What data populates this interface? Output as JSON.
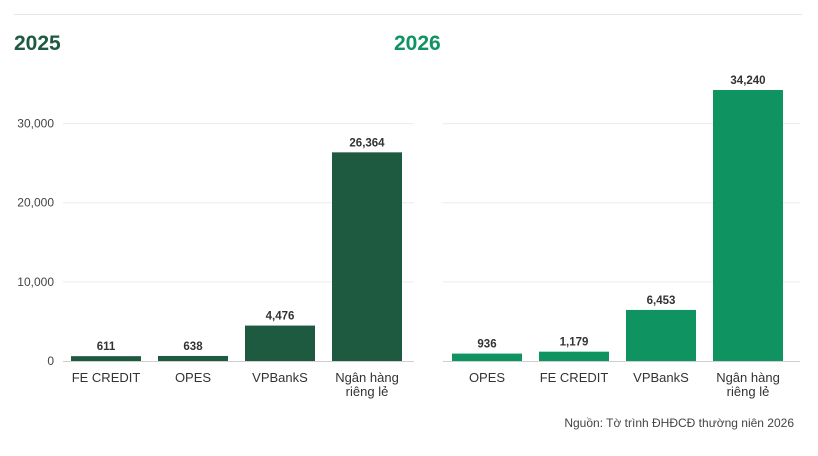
{
  "chart_data": [
    {
      "type": "bar",
      "title": "2025",
      "categories": [
        [
          "FE CREDIT"
        ],
        [
          "OPES"
        ],
        [
          "VPBankS"
        ],
        [
          "Ngân hàng",
          "riêng lẻ"
        ]
      ],
      "values": [
        611,
        638,
        4476,
        26364
      ],
      "value_labels": [
        "611",
        "638",
        "4,476",
        "26,364"
      ],
      "yticks": [
        0,
        10000,
        20000,
        30000
      ],
      "ytick_labels": [
        "0",
        "10,000",
        "20,000",
        "30,000"
      ],
      "ylim": [
        0,
        35000
      ],
      "grid": true,
      "color": "#1e5a3f"
    },
    {
      "type": "bar",
      "title": "2026",
      "categories": [
        [
          "OPES"
        ],
        [
          "FE CREDIT"
        ],
        [
          "VPBankS"
        ],
        [
          "Ngân hàng",
          "riêng lẻ"
        ]
      ],
      "values": [
        936,
        1179,
        6453,
        34240
      ],
      "value_labels": [
        "936",
        "1,179",
        "6,453",
        "34,240"
      ],
      "ylim": [
        0,
        35000
      ],
      "grid": true,
      "color": "#0f9461"
    }
  ],
  "source_note": "Nguồn: Tờ trình ĐHĐCĐ thường niên 2026"
}
